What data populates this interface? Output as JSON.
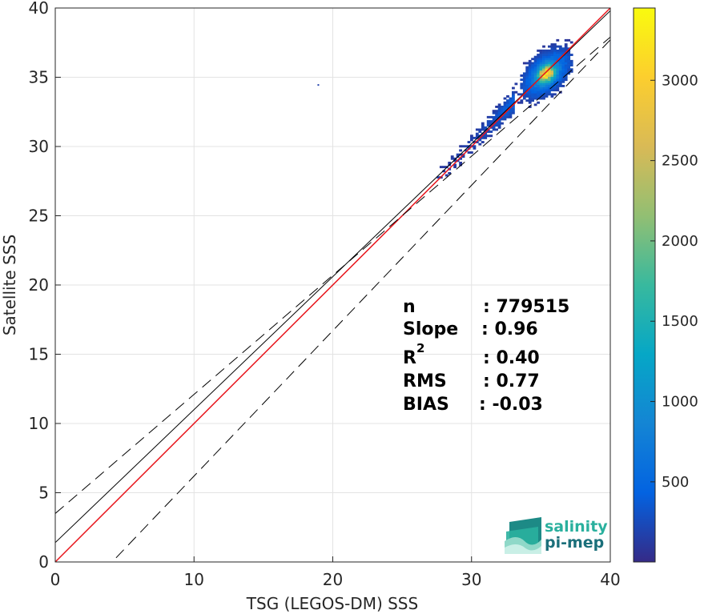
{
  "chart_data": {
    "type": "heatmap",
    "xlabel": "TSG (LEGOS-DM) SSS",
    "ylabel": "Satellite SSS",
    "xlim": [
      0,
      40
    ],
    "ylim": [
      0,
      40
    ],
    "x_ticks": [
      "0",
      "10",
      "20",
      "30",
      "40"
    ],
    "y_ticks": [
      "0",
      "5",
      "10",
      "15",
      "20",
      "25",
      "30",
      "35",
      "40"
    ],
    "grid": true,
    "colorbar": {
      "colormap": "parula",
      "range": [
        1,
        3450
      ],
      "ticks": [
        "500",
        "1000",
        "1500",
        "2000",
        "2500",
        "3000"
      ],
      "tick_values": [
        500,
        1000,
        1500,
        2000,
        2500,
        3000
      ]
    },
    "density": {
      "center_x": 35.3,
      "center_y": 35.2,
      "peak_count": 3450,
      "x_extent": [
        27.5,
        37.2
      ],
      "y_extent": [
        26.8,
        40
      ]
    },
    "lines": [
      {
        "name": "fit",
        "color": "#000000",
        "style": "solid",
        "slope": 0.96,
        "intercept": 1.4
      },
      {
        "name": "identity",
        "color": "#e8141b",
        "style": "solid",
        "slope": 1,
        "intercept": 0
      },
      {
        "name": "upper",
        "color": "#000000",
        "style": "dashed",
        "slope": 0.86,
        "intercept": 3.5
      },
      {
        "name": "lower",
        "color": "#000000",
        "style": "dashed",
        "slope": 1.05,
        "intercept": -4.3
      }
    ],
    "stats": [
      {
        "label": "n",
        "value": ": 779515"
      },
      {
        "label": "Slope",
        "value": ": 0.96"
      },
      {
        "label": "R",
        "sup": "2",
        "value": ": 0.40"
      },
      {
        "label": "RMS",
        "value": ": 0.77"
      },
      {
        "label": "BIAS",
        "value": ": -0.03"
      }
    ]
  },
  "logo": {
    "line1": "salinity",
    "line2": "pi-mep",
    "color1": "#2ab09e",
    "color2": "#1b6f7a"
  }
}
